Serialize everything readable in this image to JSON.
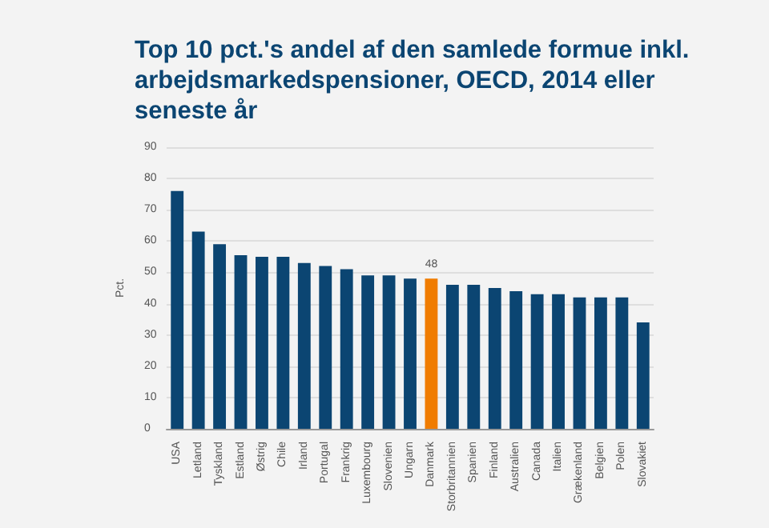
{
  "chart_data": {
    "type": "bar",
    "title": "Top 10 pct.'s andel af den samlede formue inkl. arbejdsmarkedspensioner, OECD, 2014 eller seneste år",
    "ylabel": "Pct.",
    "categories": [
      "USA",
      "Letland",
      "Tyskland",
      "Estland",
      "Østrig",
      "Chile",
      "Irland",
      "Portugal",
      "Frankrig",
      "Luxembourg",
      "Slovenien",
      "Ungarn",
      "Danmark",
      "Storbritannien",
      "Spanien",
      "Finland",
      "Australien",
      "Canada",
      "Italien",
      "Grækenland",
      "Belgien",
      "Polen",
      "Slovakiet"
    ],
    "values": [
      76,
      63,
      59,
      55.5,
      55,
      55,
      53,
      52,
      51,
      49,
      49,
      48,
      48,
      46,
      46,
      45,
      44,
      43,
      43,
      42,
      42,
      42,
      34
    ],
    "colors": [
      "#0b4572",
      "#0b4572",
      "#0b4572",
      "#0b4572",
      "#0b4572",
      "#0b4572",
      "#0b4572",
      "#0b4572",
      "#0b4572",
      "#0b4572",
      "#0b4572",
      "#0b4572",
      "#f07c00",
      "#0b4572",
      "#0b4572",
      "#0b4572",
      "#0b4572",
      "#0b4572",
      "#0b4572",
      "#0b4572",
      "#0b4572",
      "#0b4572",
      "#0b4572"
    ],
    "value_labels": [
      null,
      null,
      null,
      null,
      null,
      null,
      null,
      null,
      null,
      null,
      null,
      null,
      "48",
      null,
      null,
      null,
      null,
      null,
      null,
      null,
      null,
      null,
      null
    ],
    "ylim": [
      0,
      90
    ],
    "yticks": [
      0,
      10,
      20,
      30,
      40,
      50,
      60,
      70,
      80,
      90
    ],
    "grid": "y"
  }
}
